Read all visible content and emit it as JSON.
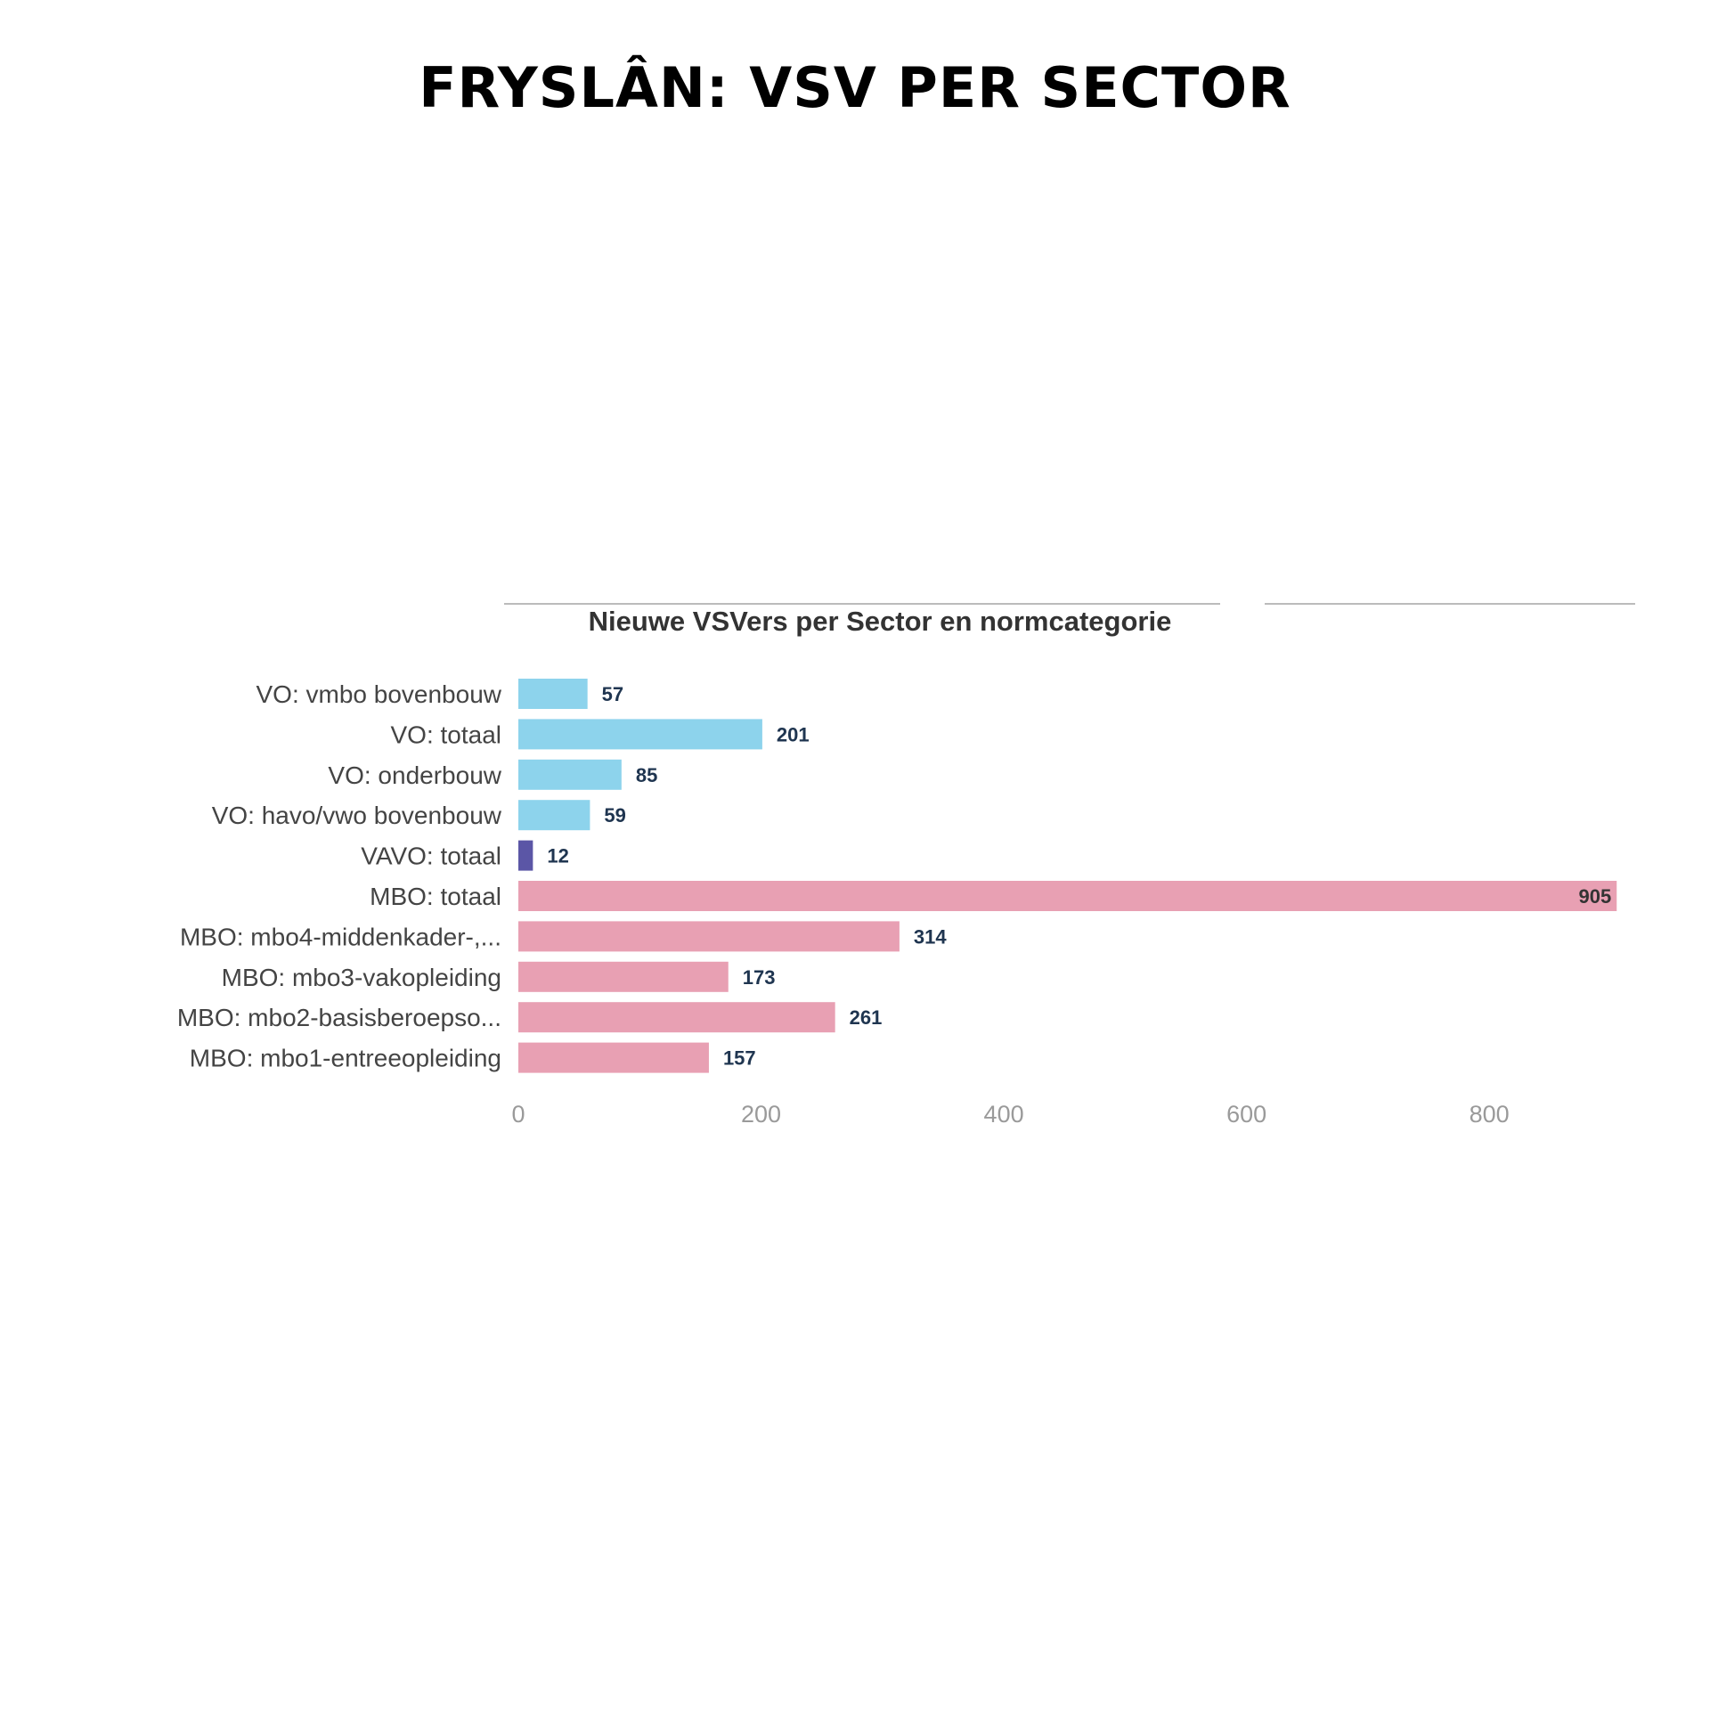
{
  "page": {
    "title": "FRYSLÂN: VSV PER SECTOR"
  },
  "colors": {
    "vo": "#8dd3ec",
    "vavo": "#5b56a6",
    "mbo": "#e8a0b3",
    "title_rule": "#bbbbbb"
  },
  "chart_data": {
    "type": "bar",
    "orientation": "horizontal",
    "title": "Nieuwe VSVers per Sector en normcategorie",
    "xlabel": "",
    "ylabel": "",
    "xlim": [
      0,
      905
    ],
    "x_ticks": [
      0,
      200,
      400,
      600,
      800
    ],
    "grid": false,
    "legend": "none",
    "categories": [
      "VO: vmbo bovenbouw",
      "VO: totaal",
      "VO: onderbouw",
      "VO: havo/vwo bovenbouw",
      "VAVO: totaal",
      "MBO: totaal",
      "MBO: mbo4-middenkader-,...",
      "MBO: mbo3-vakopleiding",
      "MBO: mbo2-basisberoepso...",
      "MBO: mbo1-entreeopleiding"
    ],
    "values": [
      57,
      201,
      85,
      59,
      12,
      905,
      314,
      173,
      261,
      157
    ],
    "value_labels": [
      "57",
      "201",
      "85",
      "59",
      "12",
      "905",
      "314",
      "173",
      "261",
      "157"
    ],
    "bar_colors": [
      "#8dd3ec",
      "#8dd3ec",
      "#8dd3ec",
      "#8dd3ec",
      "#5b56a6",
      "#e8a0b3",
      "#e8a0b3",
      "#e8a0b3",
      "#e8a0b3",
      "#e8a0b3"
    ]
  }
}
